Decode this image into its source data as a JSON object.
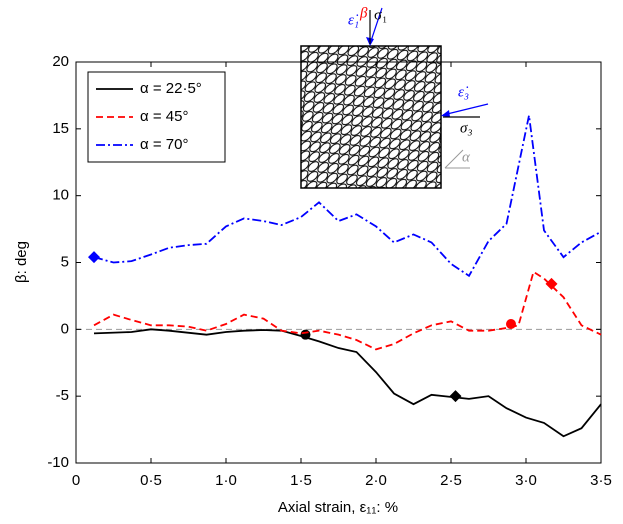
{
  "chart_data": {
    "type": "line",
    "xlabel": "Axial strain, ε₁₁: %",
    "ylabel": "β: deg",
    "xlim": [
      0,
      3.5
    ],
    "ylim": [
      -10,
      20
    ],
    "xticks": [
      0,
      {
        "value": 0.5,
        "label": "0·5"
      },
      {
        "value": 1,
        "label": "1·0"
      },
      {
        "value": 1.5,
        "label": "1·5"
      },
      {
        "value": 2,
        "label": "2·0"
      },
      {
        "value": 2.5,
        "label": "2·5"
      },
      {
        "value": 3,
        "label": "3·0"
      },
      {
        "value": 3.5,
        "label": "3·5"
      }
    ],
    "yticks": [
      -10,
      -5,
      0,
      5,
      10,
      15,
      20
    ],
    "hline": 0,
    "legend": "upper left",
    "annotations": [
      "ε̇₁",
      "β",
      "σ₁",
      "ε̇₃",
      "σ₃",
      "α"
    ],
    "series": [
      {
        "name": "α = 22·5°",
        "color": "#000000",
        "dash": "solid",
        "x": [
          0.12,
          0.37,
          0.5,
          0.62,
          0.87,
          1.0,
          1.12,
          1.25,
          1.37,
          1.5,
          1.62,
          1.75,
          1.87,
          2.0,
          2.12,
          2.25,
          2.37,
          2.45,
          2.62,
          2.75,
          2.87,
          3.0,
          3.12,
          3.25,
          3.37,
          3.5
        ],
        "values": [
          -0.3,
          -0.2,
          0.0,
          -0.1,
          -0.4,
          -0.2,
          -0.1,
          -0.05,
          -0.1,
          -0.5,
          -0.9,
          -1.4,
          -1.7,
          -3.2,
          -4.8,
          -5.6,
          -4.9,
          -5.0,
          -5.2,
          -5.0,
          -5.9,
          -6.6,
          -7.0,
          -8.0,
          -7.4,
          -5.6
        ],
        "markers": [
          {
            "shape": "circle",
            "x": 1.53,
            "y": -0.4
          },
          {
            "shape": "diamond",
            "x": 2.53,
            "y": -5.0
          }
        ]
      },
      {
        "name": "α = 45°",
        "color": "#ff0000",
        "dash": "dashed",
        "x": [
          0.12,
          0.25,
          0.37,
          0.5,
          0.62,
          0.75,
          0.87,
          1.0,
          1.12,
          1.25,
          1.37,
          1.5,
          1.62,
          1.75,
          1.87,
          2.0,
          2.12,
          2.25,
          2.37,
          2.5,
          2.62,
          2.75,
          2.87,
          2.95,
          3.05,
          3.12,
          3.25,
          3.37,
          3.5
        ],
        "values": [
          0.3,
          1.1,
          0.7,
          0.3,
          0.3,
          0.2,
          -0.1,
          0.4,
          1.1,
          0.8,
          -0.1,
          -0.3,
          -0.1,
          -0.4,
          -0.8,
          -1.5,
          -1.1,
          -0.3,
          0.3,
          0.6,
          -0.1,
          -0.1,
          0.1,
          0.3,
          4.3,
          3.8,
          2.4,
          0.3,
          -0.4
        ],
        "markers": [
          {
            "shape": "circle",
            "x": 2.9,
            "y": 0.4
          },
          {
            "shape": "diamond",
            "x": 3.17,
            "y": 3.4
          }
        ]
      },
      {
        "name": "α = 70°",
        "color": "#0000ff",
        "dash": "dashdot",
        "x": [
          0.12,
          0.25,
          0.37,
          0.5,
          0.62,
          0.75,
          0.87,
          1.0,
          1.12,
          1.25,
          1.37,
          1.5,
          1.62,
          1.75,
          1.87,
          2.0,
          2.12,
          2.25,
          2.37,
          2.5,
          2.62,
          2.75,
          2.87,
          3.02,
          3.12,
          3.25,
          3.37,
          3.5
        ],
        "values": [
          5.4,
          5.0,
          5.1,
          5.6,
          6.1,
          6.3,
          6.4,
          7.7,
          8.3,
          8.1,
          7.8,
          8.4,
          9.5,
          8.1,
          8.6,
          7.7,
          6.5,
          7.1,
          6.5,
          4.9,
          4.0,
          6.6,
          7.9,
          16.0,
          7.4,
          5.4,
          6.5,
          7.3
        ],
        "markers": [
          {
            "shape": "diamond",
            "x": 0.12,
            "y": 5.4
          }
        ]
      }
    ]
  }
}
